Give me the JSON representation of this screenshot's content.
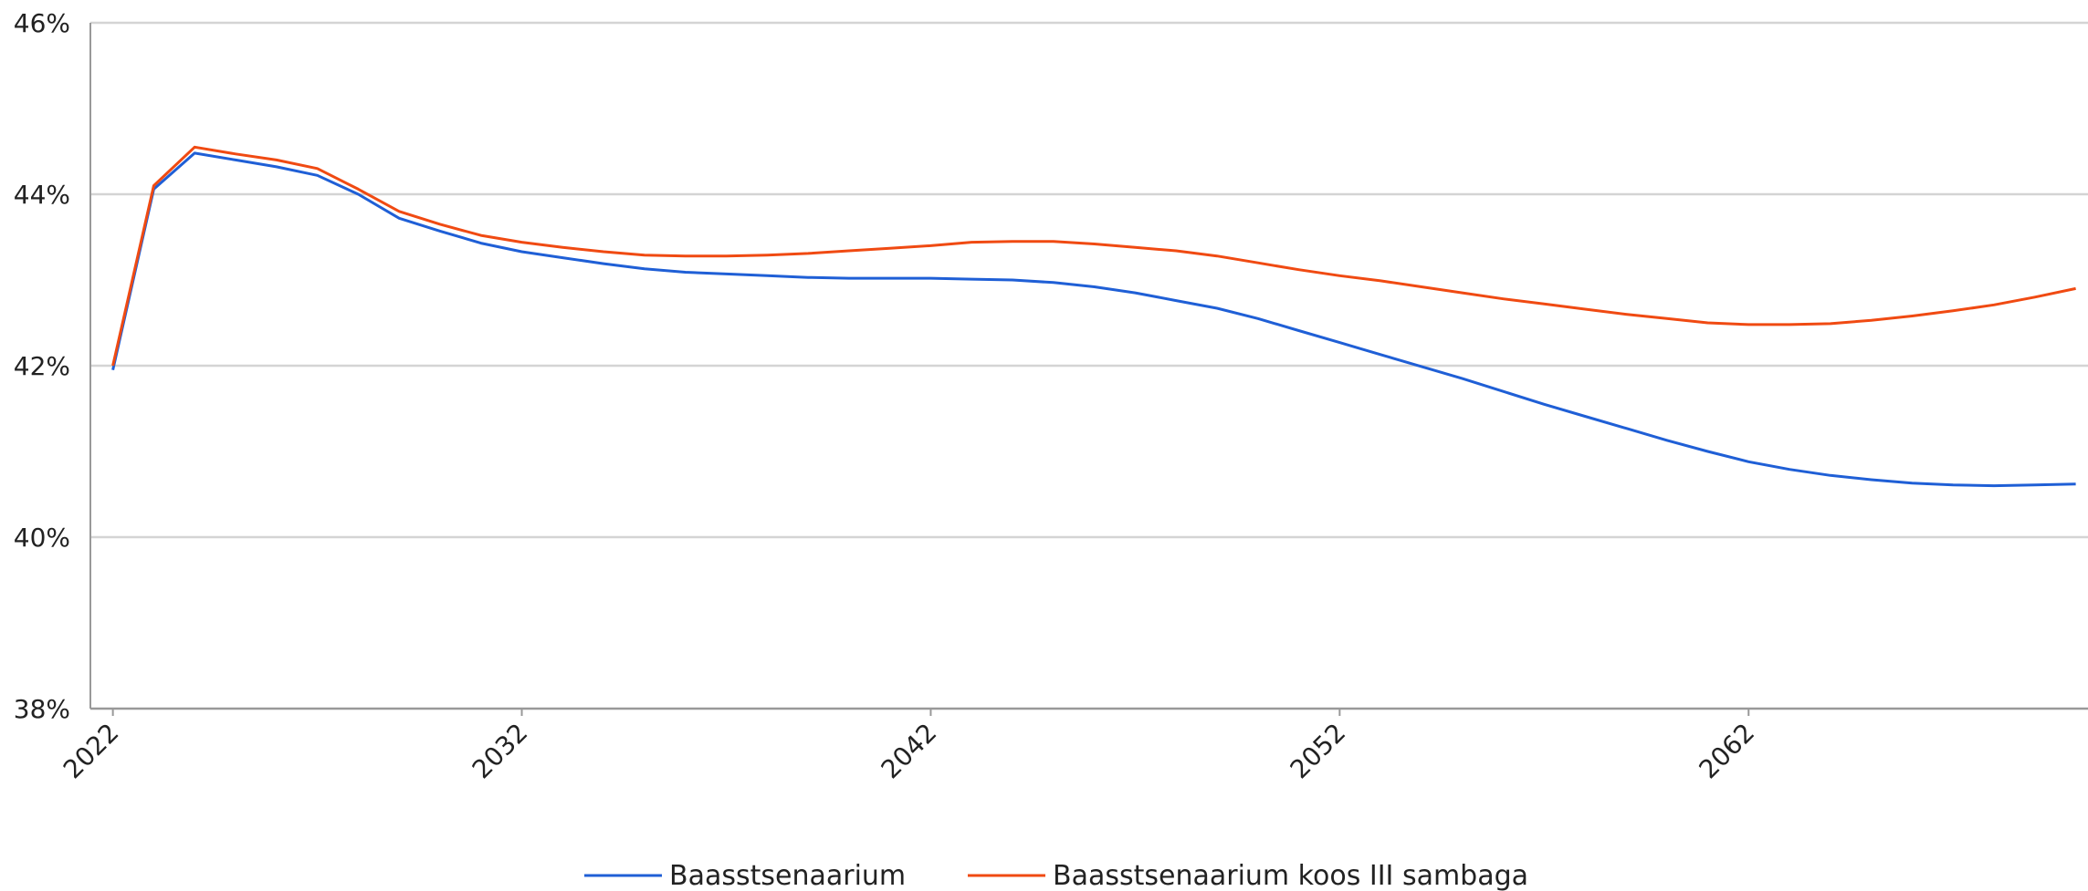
{
  "chart_data": {
    "type": "line",
    "x": [
      2022,
      2023,
      2024,
      2025,
      2026,
      2027,
      2028,
      2029,
      2030,
      2031,
      2032,
      2033,
      2034,
      2035,
      2036,
      2037,
      2038,
      2039,
      2040,
      2041,
      2042,
      2043,
      2044,
      2045,
      2046,
      2047,
      2048,
      2049,
      2050,
      2051,
      2052,
      2053,
      2054,
      2055,
      2056,
      2057,
      2058,
      2059,
      2060,
      2061,
      2062,
      2063,
      2064,
      2065,
      2066,
      2067,
      2068,
      2069,
      2070
    ],
    "series": [
      {
        "name": "Baasstsenaarium",
        "color": "#1f5fd6",
        "values": [
          41.95,
          44.06,
          44.48,
          44.4,
          44.32,
          44.22,
          44.0,
          43.72,
          43.57,
          43.43,
          43.33,
          43.26,
          43.19,
          43.13,
          43.09,
          43.07,
          43.05,
          43.03,
          43.02,
          43.02,
          43.02,
          43.01,
          43.0,
          42.97,
          42.92,
          42.85,
          42.76,
          42.67,
          42.55,
          42.41,
          42.27,
          42.13,
          41.99,
          41.85,
          41.7,
          41.55,
          41.41,
          41.27,
          41.13,
          41.0,
          40.88,
          40.79,
          40.72,
          40.67,
          40.63,
          40.61,
          40.6,
          40.61,
          40.62
        ]
      },
      {
        "name": "Baasstsenaarium koos III sambaga",
        "color": "#f04a12",
        "values": [
          42.0,
          44.1,
          44.55,
          44.47,
          44.4,
          44.3,
          44.06,
          43.8,
          43.65,
          43.52,
          43.44,
          43.38,
          43.33,
          43.29,
          43.28,
          43.28,
          43.29,
          43.31,
          43.34,
          43.37,
          43.4,
          43.44,
          43.45,
          43.45,
          43.42,
          43.38,
          43.34,
          43.28,
          43.2,
          43.12,
          43.05,
          42.99,
          42.92,
          42.85,
          42.78,
          42.72,
          42.66,
          42.6,
          42.55,
          42.5,
          42.48,
          42.48,
          42.49,
          42.53,
          42.58,
          42.64,
          42.71,
          42.8,
          42.9
        ]
      }
    ],
    "xlim": [
      2021.45,
      2070.3
    ],
    "xticks": [
      2022,
      2032,
      2042,
      2052,
      2062
    ],
    "ylim": [
      38,
      46
    ],
    "yticks": [
      {
        "value": 38,
        "label": "38%"
      },
      {
        "value": 40,
        "label": "40%"
      },
      {
        "value": 42,
        "label": "42%"
      },
      {
        "value": 44,
        "label": "44%"
      },
      {
        "value": 46,
        "label": "46%"
      }
    ],
    "grid": true,
    "legend": "bottom"
  }
}
